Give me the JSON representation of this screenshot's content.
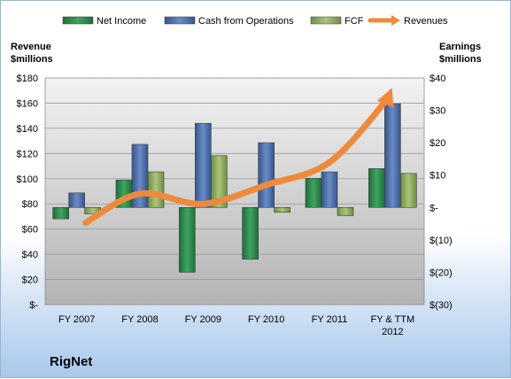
{
  "chart_data": {
    "type": "bar",
    "company": "RigNet",
    "categories": [
      "FY 2007",
      "FY 2008",
      "FY 2009",
      "FY 2010",
      "FY 2011",
      "FY & TTM 2012"
    ],
    "left_axis": {
      "title_line1": "Revenue",
      "title_line2": "$millions",
      "range": [
        0,
        180
      ],
      "ticks": [
        "$-",
        "$20",
        "$40",
        "$60",
        "$80",
        "$100",
        "$120",
        "$140",
        "$160",
        "$180"
      ]
    },
    "right_axis": {
      "title_line1": "Earnings",
      "title_line2": "$millions",
      "range": [
        -30,
        40
      ],
      "ticks": [
        "$(30)",
        "$(20)",
        "$(10)",
        "$-",
        "$10",
        "$20",
        "$30",
        "$40"
      ]
    },
    "grid": true,
    "legend_position": "top",
    "series": [
      {
        "name": "Net Income",
        "axis": "right",
        "kind": "bar",
        "color": "#2e8b4e",
        "values": [
          -3.5,
          8.5,
          -20,
          -16,
          9,
          12
        ]
      },
      {
        "name": "Cash from Operations",
        "axis": "right",
        "kind": "bar",
        "color": "#4f72b0",
        "values": [
          4.5,
          19.5,
          26,
          20,
          11,
          32
        ]
      },
      {
        "name": "FCF",
        "axis": "right",
        "kind": "bar",
        "color": "#8fae5e",
        "values": [
          -2,
          11,
          16,
          -1.5,
          -2.5,
          10.5
        ]
      },
      {
        "name": "Revenues",
        "axis": "left",
        "kind": "line",
        "color": "#ee8a3c",
        "values": [
          65,
          88,
          80,
          95,
          113,
          163
        ]
      }
    ]
  }
}
